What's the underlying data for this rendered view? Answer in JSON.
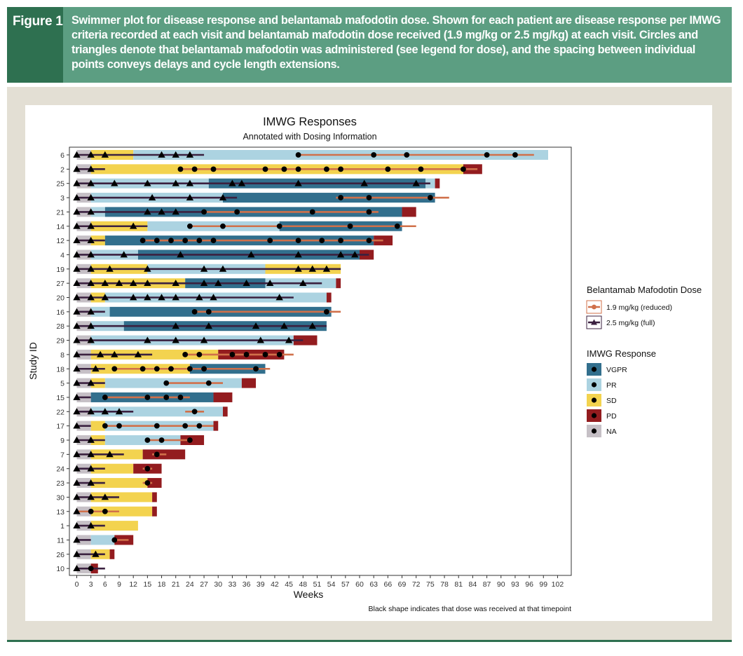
{
  "figure": {
    "tag": "Figure 1",
    "caption": "Swimmer plot for disease response and belantamab mafodotin dose. Shown for each patient are disease response per IMWG criteria recorded at each visit and belantamab mafodotin dose received (1.9 mg/kg or 2.5 mg/kg) at each visit. Circles and triangles denote that belantamab mafodotin was administered (see legend for dose), and the spacing between individual points conveys delays and cycle length extensions."
  },
  "chart_data": {
    "type": "swimmer",
    "title": "IMWG Responses",
    "subtitle": "Annotated with Dosing Information",
    "xlabel": "Weeks",
    "ylabel": "Study ID",
    "footnote": "Black shape indicates that dose was received at that timepoint",
    "xlim": [
      -1.5,
      106
    ],
    "xticks": [
      0,
      3,
      6,
      9,
      12,
      15,
      18,
      21,
      24,
      27,
      30,
      33,
      36,
      39,
      42,
      45,
      48,
      51,
      54,
      57,
      60,
      63,
      66,
      69,
      72,
      75,
      78,
      81,
      84,
      87,
      90,
      93,
      96,
      99,
      102
    ],
    "grid": false,
    "colors": {
      "VGPR": "#326f8d",
      "PR": "#acd3e1",
      "SD": "#f3d34f",
      "PD": "#931c1f",
      "NA": "#c6c0c6",
      "dose_19": "#d0704a",
      "dose_25": "#3b2140",
      "marker": "#000000"
    },
    "legend_dose": {
      "title": "Belantamab Mafodotin Dose",
      "items": [
        {
          "label": "1.9 mg/kg (reduced)",
          "dose": "1.9"
        },
        {
          "label": "2.5 mg/kg (full)",
          "dose": "2.5"
        }
      ]
    },
    "legend_response": {
      "title": "IMWG Response",
      "items": [
        "VGPR",
        "PR",
        "SD",
        "PD",
        "NA"
      ]
    },
    "legend_position": "right",
    "patients": [
      {
        "id": "6",
        "segments": [
          [
            "NA",
            0,
            3
          ],
          [
            "SD",
            3,
            12
          ],
          [
            "PR",
            12,
            100
          ]
        ],
        "doses": [
          [
            "2.5",
            0,
            27
          ],
          [
            "1.9",
            47,
            97
          ]
        ],
        "tri": [
          0,
          3,
          6,
          18,
          21,
          24
        ],
        "circ": [
          47,
          63,
          70,
          87,
          93
        ]
      },
      {
        "id": "2",
        "segments": [
          [
            "NA",
            0,
            3
          ],
          [
            "SD",
            3,
            82
          ],
          [
            "PD",
            82,
            86
          ]
        ],
        "doses": [
          [
            "2.5",
            0,
            6
          ],
          [
            "1.9",
            22,
            85
          ]
        ],
        "tri": [
          0,
          3
        ],
        "circ": [
          22,
          25,
          29,
          40,
          44,
          47,
          53,
          56,
          66,
          73,
          82
        ]
      },
      {
        "id": "25",
        "segments": [
          [
            "NA",
            0,
            3
          ],
          [
            "PR",
            3,
            28
          ],
          [
            "VGPR",
            28,
            74
          ],
          [
            "PR",
            74,
            76
          ],
          [
            "PD",
            76,
            77
          ]
        ],
        "doses": [
          [
            "2.5",
            0,
            75
          ]
        ],
        "tri": [
          0,
          3,
          8,
          15,
          21,
          24,
          33,
          35,
          47,
          61,
          72
        ]
      },
      {
        "id": "3",
        "segments": [
          [
            "NA",
            0,
            3
          ],
          [
            "PR",
            3,
            31
          ],
          [
            "VGPR",
            31,
            76
          ]
        ],
        "doses": [
          [
            "2.5",
            0,
            34
          ],
          [
            "1.9",
            55,
            79
          ]
        ],
        "tri": [
          0,
          3,
          16,
          24,
          31
        ],
        "circ": [
          56,
          62,
          75
        ]
      },
      {
        "id": "21",
        "segments": [
          [
            "NA",
            0,
            3
          ],
          [
            "PR",
            3,
            6
          ],
          [
            "VGPR",
            6,
            69
          ],
          [
            "PD",
            69,
            72
          ]
        ],
        "doses": [
          [
            "2.5",
            0,
            27
          ],
          [
            "1.9",
            27,
            64
          ]
        ],
        "tri": [
          0,
          3,
          15,
          18,
          21
        ],
        "circ": [
          27,
          34,
          50,
          62
        ]
      },
      {
        "id": "14",
        "segments": [
          [
            "NA",
            0,
            3
          ],
          [
            "SD",
            3,
            15
          ],
          [
            "PR",
            15,
            43
          ],
          [
            "VGPR",
            43,
            69
          ]
        ],
        "doses": [
          [
            "2.5",
            0,
            15
          ],
          [
            "1.9",
            24,
            72
          ]
        ],
        "tri": [
          0,
          3,
          12
        ],
        "circ": [
          24,
          31,
          43,
          58,
          68
        ]
      },
      {
        "id": "12",
        "segments": [
          [
            "NA",
            0,
            3
          ],
          [
            "SD",
            3,
            6
          ],
          [
            "VGPR",
            6,
            63
          ],
          [
            "PD",
            63,
            67
          ]
        ],
        "doses": [
          [
            "2.5",
            0,
            6
          ],
          [
            "1.9",
            14,
            65
          ]
        ],
        "tri": [
          0,
          3
        ],
        "circ": [
          14,
          17,
          20,
          23,
          26,
          29,
          41,
          47,
          52,
          56,
          62
        ]
      },
      {
        "id": "4",
        "segments": [
          [
            "NA",
            0,
            3
          ],
          [
            "PR",
            3,
            13
          ],
          [
            "VGPR",
            13,
            60
          ],
          [
            "PD",
            60,
            63
          ]
        ],
        "doses": [
          [
            "2.5",
            0,
            62
          ]
        ],
        "tri": [
          0,
          3,
          10,
          22,
          37,
          47,
          56,
          59
        ]
      },
      {
        "id": "19",
        "segments": [
          [
            "NA",
            0,
            3
          ],
          [
            "SD",
            3,
            15
          ],
          [
            "PR",
            15,
            40
          ],
          [
            "SD",
            40,
            56
          ]
        ],
        "doses": [
          [
            "2.5",
            0,
            56
          ]
        ],
        "tri": [
          0,
          3,
          7,
          15,
          27,
          31,
          47,
          50,
          53
        ]
      },
      {
        "id": "27",
        "segments": [
          [
            "NA",
            0,
            3
          ],
          [
            "SD",
            3,
            23
          ],
          [
            "VGPR",
            23,
            40
          ],
          [
            "PR",
            40,
            55
          ],
          [
            "PD",
            55,
            56
          ]
        ],
        "doses": [
          [
            "2.5",
            0,
            52
          ]
        ],
        "tri": [
          0,
          3,
          6,
          9,
          12,
          15,
          21,
          27,
          30,
          36,
          41,
          48
        ]
      },
      {
        "id": "20",
        "segments": [
          [
            "NA",
            0,
            3
          ],
          [
            "SD",
            3,
            6
          ],
          [
            "PR",
            6,
            53
          ],
          [
            "PD",
            53,
            54
          ]
        ],
        "doses": [
          [
            "2.5",
            0,
            46
          ]
        ],
        "tri": [
          0,
          3,
          6,
          12,
          15,
          18,
          21,
          26,
          29,
          43
        ]
      },
      {
        "id": "16",
        "segments": [
          [
            "NA",
            0,
            3
          ],
          [
            "PR",
            3,
            7
          ],
          [
            "VGPR",
            7,
            54
          ]
        ],
        "doses": [
          [
            "2.5",
            0,
            6
          ],
          [
            "1.9",
            25,
            56
          ]
        ],
        "tri": [
          0,
          3
        ],
        "circ": [
          25,
          28,
          53
        ]
      },
      {
        "id": "28",
        "segments": [
          [
            "NA",
            0,
            3
          ],
          [
            "PR",
            3,
            10
          ],
          [
            "VGPR",
            10,
            53
          ]
        ],
        "doses": [
          [
            "2.5",
            0,
            53
          ]
        ],
        "tri": [
          0,
          3,
          21,
          28,
          38,
          44,
          50
        ]
      },
      {
        "id": "29",
        "segments": [
          [
            "NA",
            0,
            3
          ],
          [
            "PR",
            3,
            46
          ],
          [
            "PD",
            46,
            51
          ]
        ],
        "doses": [
          [
            "2.5",
            0,
            48
          ]
        ],
        "tri": [
          0,
          3,
          15,
          21,
          27,
          39,
          45
        ]
      },
      {
        "id": "8",
        "segments": [
          [
            "NA",
            0,
            3
          ],
          [
            "SD",
            3,
            30
          ],
          [
            "PD",
            30,
            44
          ]
        ],
        "doses": [
          [
            "2.5",
            0,
            16
          ],
          [
            "1.9",
            23,
            46
          ]
        ],
        "tri": [
          0,
          5,
          8,
          13
        ],
        "circ": [
          23,
          26,
          33,
          36,
          40,
          43
        ]
      },
      {
        "id": "18",
        "segments": [
          [
            "NA",
            0,
            3
          ],
          [
            "SD",
            3,
            24
          ],
          [
            "VGPR",
            24,
            40
          ]
        ],
        "doses": [
          [
            "2.5",
            0,
            6
          ],
          [
            "1.9",
            8,
            41
          ]
        ],
        "tri": [
          0,
          4
        ],
        "circ": [
          8,
          14,
          17,
          20,
          24,
          27,
          38
        ]
      },
      {
        "id": "5",
        "segments": [
          [
            "NA",
            0,
            3
          ],
          [
            "SD",
            3,
            6
          ],
          [
            "PR",
            6,
            35
          ],
          [
            "PD",
            35,
            38
          ]
        ],
        "doses": [
          [
            "2.5",
            0,
            6
          ],
          [
            "1.9",
            19,
            31
          ]
        ],
        "tri": [
          0,
          3
        ],
        "circ": [
          19,
          28
        ]
      },
      {
        "id": "15",
        "segments": [
          [
            "NA",
            0,
            3
          ],
          [
            "VGPR",
            3,
            29
          ],
          [
            "PD",
            29,
            33
          ]
        ],
        "doses": [
          [
            "2.5",
            0,
            3
          ],
          [
            "1.9",
            6,
            24
          ]
        ],
        "tri": [
          0
        ],
        "circ": [
          6,
          15,
          19,
          22
        ]
      },
      {
        "id": "22",
        "segments": [
          [
            "NA",
            0,
            3
          ],
          [
            "PR",
            3,
            31
          ],
          [
            "PD",
            31,
            32
          ]
        ],
        "doses": [
          [
            "2.5",
            0,
            12
          ],
          [
            "1.9",
            23,
            27
          ]
        ],
        "tri": [
          0,
          3,
          6,
          9
        ],
        "circ": [
          25
        ]
      },
      {
        "id": "17",
        "segments": [
          [
            "NA",
            0,
            3
          ],
          [
            "SD",
            3,
            6
          ],
          [
            "PR",
            6,
            29
          ],
          [
            "PD",
            29,
            30
          ]
        ],
        "doses": [
          [
            "2.5",
            0,
            3
          ],
          [
            "1.9",
            6,
            29
          ]
        ],
        "tri": [
          0
        ],
        "circ": [
          6,
          9,
          17,
          23,
          26
        ]
      },
      {
        "id": "9",
        "segments": [
          [
            "NA",
            0,
            3
          ],
          [
            "SD",
            3,
            6
          ],
          [
            "PR",
            6,
            22
          ],
          [
            "PD",
            22,
            27
          ]
        ],
        "doses": [
          [
            "2.5",
            0,
            6
          ],
          [
            "1.9",
            15,
            24
          ]
        ],
        "tri": [
          0,
          3
        ],
        "circ": [
          15,
          18,
          24
        ]
      },
      {
        "id": "7",
        "segments": [
          [
            "NA",
            0,
            3
          ],
          [
            "SD",
            3,
            14
          ],
          [
            "PD",
            14,
            23
          ]
        ],
        "doses": [
          [
            "2.5",
            0,
            10
          ],
          [
            "1.9",
            16,
            19
          ]
        ],
        "tri": [
          0,
          3,
          7
        ],
        "circ": [
          17
        ]
      },
      {
        "id": "24",
        "segments": [
          [
            "NA",
            0,
            3
          ],
          [
            "SD",
            3,
            12
          ],
          [
            "PD",
            12,
            18
          ]
        ],
        "doses": [
          [
            "2.5",
            0,
            6
          ],
          [
            "1.9",
            14,
            16
          ]
        ],
        "tri": [
          0,
          3
        ],
        "circ": [
          15
        ]
      },
      {
        "id": "23",
        "segments": [
          [
            "NA",
            0,
            3
          ],
          [
            "SD",
            3,
            15
          ],
          [
            "PD",
            15,
            18
          ]
        ],
        "doses": [
          [
            "2.5",
            0,
            6
          ],
          [
            "1.9",
            14,
            16
          ]
        ],
        "tri": [
          0,
          3
        ],
        "circ": [
          15
        ]
      },
      {
        "id": "30",
        "segments": [
          [
            "NA",
            0,
            3
          ],
          [
            "SD",
            3,
            16
          ],
          [
            "PD",
            16,
            17
          ]
        ],
        "doses": [
          [
            "2.5",
            0,
            9
          ]
        ],
        "tri": [
          0,
          3,
          6
        ]
      },
      {
        "id": "13",
        "segments": [
          [
            "NA",
            0,
            3
          ],
          [
            "SD",
            3,
            16
          ],
          [
            "PD",
            16,
            17
          ]
        ],
        "doses": [
          [
            "1.9",
            0,
            9
          ]
        ],
        "tri": [
          0
        ],
        "circ": [
          3,
          6
        ]
      },
      {
        "id": "1",
        "segments": [
          [
            "NA",
            0,
            3
          ],
          [
            "SD",
            3,
            13
          ]
        ],
        "doses": [
          [
            "2.5",
            0,
            6
          ]
        ],
        "tri": [
          0,
          3
        ]
      },
      {
        "id": "11",
        "segments": [
          [
            "NA",
            0,
            3
          ],
          [
            "PR",
            3,
            8
          ],
          [
            "PD",
            8,
            12
          ]
        ],
        "doses": [
          [
            "2.5",
            0,
            3
          ],
          [
            "1.9",
            8,
            11
          ]
        ],
        "tri": [
          0
        ],
        "circ": [
          8
        ]
      },
      {
        "id": "26",
        "segments": [
          [
            "NA",
            0,
            3
          ],
          [
            "SD",
            3,
            7
          ],
          [
            "PD",
            7,
            8
          ]
        ],
        "doses": [
          [
            "2.5",
            0,
            6
          ]
        ],
        "tri": [
          0,
          4
        ]
      },
      {
        "id": "10",
        "segments": [
          [
            "NA",
            0,
            3
          ],
          [
            "PD",
            3,
            4.5
          ]
        ],
        "doses": [
          [
            "2.5",
            0,
            6
          ]
        ],
        "tri": [
          0
        ],
        "circ": [
          3
        ]
      }
    ]
  }
}
